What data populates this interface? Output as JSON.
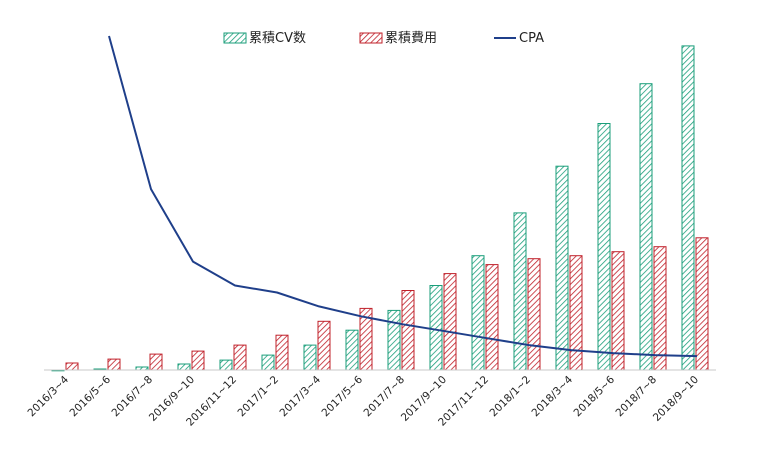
{
  "chart_data": {
    "type": "bar",
    "title": "",
    "xlabel": "",
    "ylabel": "",
    "categories": [
      "2016/3~4",
      "2016/5~6",
      "2016/7~8",
      "2016/9~10",
      "2016/11~12",
      "2017/1~2",
      "2017/3~4",
      "2017/5~6",
      "2017/7~8",
      "2017/9~10",
      "2017/11~12",
      "2018/1~2",
      "2018/3~4",
      "2018/5~6",
      "2018/7~8",
      "2018/9~10"
    ],
    "series": [
      {
        "name": "累積CV数",
        "kind": "bar",
        "color": "#1a9e7a",
        "values": [
          0,
          1,
          3,
          6,
          10,
          15,
          25,
          40,
          60,
          85,
          115,
          158,
          205,
          248,
          288,
          326
        ]
      },
      {
        "name": "累積費用",
        "kind": "bar",
        "color": "#c0202a",
        "values": [
          7,
          11,
          16,
          19,
          25,
          35,
          49,
          62,
          80,
          97,
          106,
          112,
          115,
          119,
          124,
          133
        ]
      },
      {
        "name": "CPA",
        "kind": "line",
        "color": "#1f3f8a",
        "values": [
          null,
          336,
          182,
          109,
          85,
          78,
          64,
          54,
          46,
          39,
          32,
          25,
          20,
          17,
          15,
          14
        ]
      }
    ],
    "ylim": [
      0,
      340
    ],
    "grid": false,
    "legend": "top"
  }
}
